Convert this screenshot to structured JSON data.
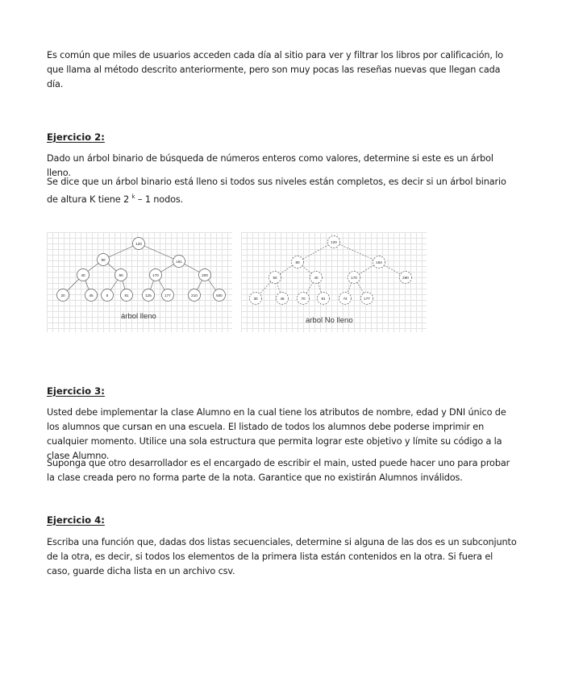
{
  "intro": "Es común que miles de usuarios acceden cada día al sitio para ver y filtrar los libros por calificación, lo que llama al método descrito anteriormente, pero son muy pocas las reseñas nuevas que llegan cada día.",
  "ejercicio2": {
    "title": "Ejercicio 2:",
    "p1": "Dado un árbol binario de búsqueda de números enteros como valores, determine si este es un árbol lleno.",
    "p2_before": "Se dice que un árbol binario está lleno si todos sus niveles están completos, es decir si un árbol binario de altura K tiene 2",
    "p2_sup": "k",
    "p2_after": " – 1 nodos."
  },
  "figure_full": {
    "caption": "árbol lleno",
    "nodes": [
      "120",
      "90",
      "181",
      "40",
      "90",
      "170",
      "200",
      "20",
      "45",
      "5",
      "81",
      "125",
      "177",
      "210",
      "500"
    ]
  },
  "figure_not_full": {
    "caption": "arbol  No lleno",
    "nodes": [
      "120",
      "80",
      "164",
      "50",
      "40",
      "170",
      "290",
      "30",
      "45",
      "70",
      "91",
      "74",
      "177"
    ]
  },
  "ejercicio3": {
    "title": "Ejercicio 3:",
    "p1": "Usted debe implementar la clase Alumno en la cual tiene los atributos de nombre, edad y DNI único de los alumnos que cursan en una escuela. El listado de todos los alumnos debe poderse imprimir en cualquier momento. Utilice una sola estructura que permita lograr este objetivo y límite su código a la clase Alumno.",
    "p2": "Suponga que otro desarrollador es el encargado de escribir el main, usted puede hacer uno para probar la clase creada pero no forma parte de la nota. Garantice que no existirán Alumnos inválidos."
  },
  "ejercicio4": {
    "title": "Ejercicio 4:",
    "p1": "Escriba una función que, dadas dos listas secuenciales, determine si alguna de las dos es un subconjunto de la otra, es decir, si todos los elementos de la primera lista están contenidos en la otra. Si fuera el caso, guarde dicha lista en un archivo csv."
  }
}
